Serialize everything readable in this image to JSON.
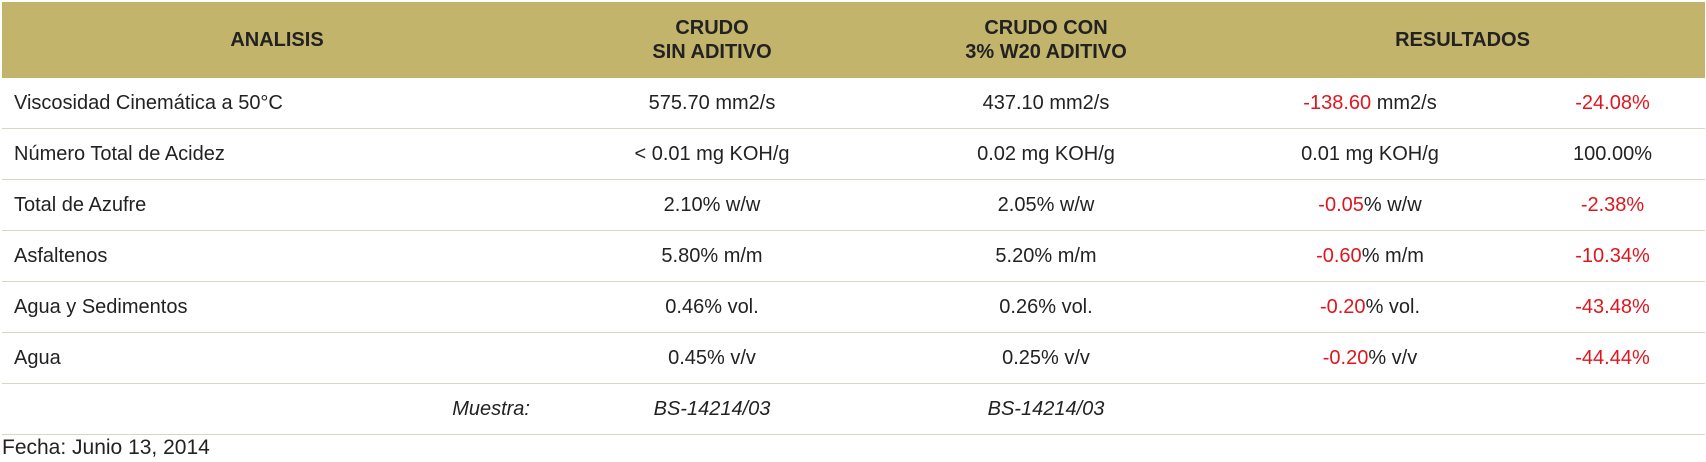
{
  "header": {
    "analisis": "ANALISIS",
    "crudo_line1": "CRUDO",
    "crudo_line2": "SIN ADITIVO",
    "aditivo_line1": "CRUDO CON",
    "aditivo_line2": "3% W20 ADITIVO",
    "resultados": "RESULTADOS"
  },
  "rows": [
    {
      "label": "Viscosidad Cinemática a 50°C",
      "crudo": "575.70 mm2/s",
      "aditivo": "437.10 mm2/s",
      "res_value": "-138.60",
      "res_unit": " mm2/s",
      "res_pct": "-24.08%",
      "negative": true
    },
    {
      "label": "Número Total de Acidez",
      "crudo": "< 0.01 mg KOH/g",
      "aditivo": "0.02 mg KOH/g",
      "res_value": "0.01",
      "res_unit": " mg KOH/g",
      "res_pct": "100.00%",
      "negative": false
    },
    {
      "label": "Total de Azufre",
      "crudo": "2.10% w/w",
      "aditivo": "2.05% w/w",
      "res_value": "-0.05",
      "res_unit": "% w/w",
      "res_pct": "-2.38%",
      "negative": true
    },
    {
      "label": "Asfaltenos",
      "crudo": "5.80% m/m",
      "aditivo": "5.20% m/m",
      "res_value": "-0.60",
      "res_unit": "% m/m",
      "res_pct": "-10.34%",
      "negative": true
    },
    {
      "label": "Agua y Sedimentos",
      "crudo": "0.46% vol.",
      "aditivo": "0.26% vol.",
      "res_value": "-0.20",
      "res_unit": "% vol.",
      "res_pct": "-43.48%",
      "negative": true
    },
    {
      "label": "Agua",
      "crudo": "0.45% v/v",
      "aditivo": "0.25% v/v",
      "res_value": "-0.20",
      "res_unit": "% v/v",
      "res_pct": "-44.44%",
      "negative": true
    }
  ],
  "sample": {
    "label": "Muestra:",
    "crudo": "BS-14214/03",
    "aditivo": "BS-14214/03"
  },
  "footer": {
    "fecha": "Fecha: Junio 13, 2014"
  },
  "colors": {
    "header_bg": "#c3b46c",
    "negative": "#e0161f"
  }
}
